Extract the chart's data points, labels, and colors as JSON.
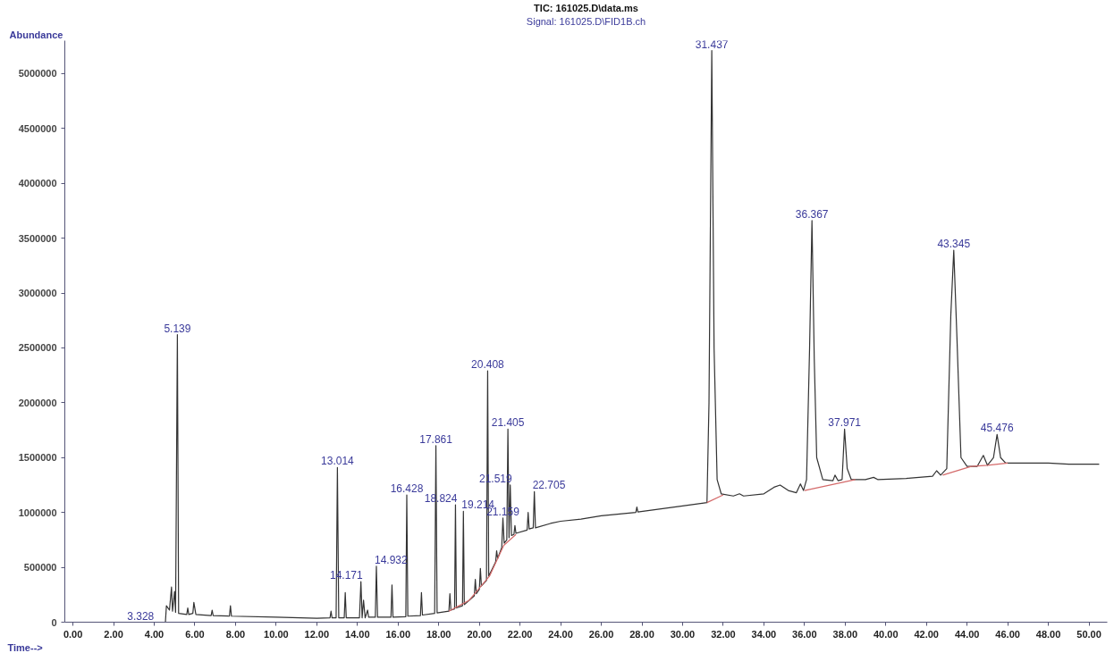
{
  "chart_data": {
    "type": "line",
    "title": "TIC: 161025.D\\data.ms",
    "subtitle": "Signal: 161025.D\\FID1B.ch",
    "xlabel": "Time-->",
    "ylabel": "Abundance",
    "xlim": [
      -0.4,
      50.9
    ],
    "ylim": [
      0,
      5300000
    ],
    "xticks": [
      {
        "value": 0,
        "label": "0.00"
      },
      {
        "value": 2,
        "label": "2.00"
      },
      {
        "value": 4,
        "label": "4.00"
      },
      {
        "value": 6,
        "label": "6.00"
      },
      {
        "value": 8,
        "label": "8.00"
      },
      {
        "value": 10,
        "label": "10.00"
      },
      {
        "value": 12,
        "label": "12.00"
      },
      {
        "value": 14,
        "label": "14.00"
      },
      {
        "value": 16,
        "label": "16.00"
      },
      {
        "value": 18,
        "label": "18.00"
      },
      {
        "value": 20,
        "label": "20.00"
      },
      {
        "value": 22,
        "label": "22.00"
      },
      {
        "value": 24,
        "label": "24.00"
      },
      {
        "value": 26,
        "label": "26.00"
      },
      {
        "value": 28,
        "label": "28.00"
      },
      {
        "value": 30,
        "label": "30.00"
      },
      {
        "value": 32,
        "label": "32.00"
      },
      {
        "value": 34,
        "label": "34.00"
      },
      {
        "value": 36,
        "label": "36.00"
      },
      {
        "value": 38,
        "label": "38.00"
      },
      {
        "value": 40,
        "label": "40.00"
      },
      {
        "value": 42,
        "label": "42.00"
      },
      {
        "value": 44,
        "label": "44.00"
      },
      {
        "value": 46,
        "label": "46.00"
      },
      {
        "value": 48,
        "label": "48.00"
      },
      {
        "value": 50,
        "label": "50.00"
      }
    ],
    "yticks": [
      0,
      500000,
      1000000,
      1500000,
      2000000,
      2500000,
      3000000,
      3500000,
      4000000,
      4500000,
      5000000
    ],
    "grid": false,
    "marker": "none",
    "line_style": "solid",
    "series": [
      {
        "color": "#333333",
        "x": [
          0,
          4.55,
          4.6,
          4.75,
          4.85,
          4.9,
          5.0,
          5.05,
          5.139,
          5.2,
          5.6,
          5.65,
          5.7,
          5.9,
          5.95,
          6.05,
          6.8,
          6.85,
          6.9,
          7.7,
          7.75,
          7.8,
          10,
          12,
          12.65,
          12.7,
          12.75,
          12.95,
          13.014,
          13.08,
          13.35,
          13.4,
          13.45,
          14.1,
          14.171,
          14.23,
          14.3,
          14.38,
          14.5,
          14.55,
          14.88,
          14.932,
          14.99,
          15.65,
          15.7,
          15.75,
          16.38,
          16.428,
          16.48,
          17.1,
          17.15,
          17.2,
          17.8,
          17.861,
          17.92,
          18.5,
          18.55,
          18.6,
          18.78,
          18.824,
          18.87,
          19.17,
          19.214,
          19.26,
          19.75,
          19.8,
          19.85,
          20.0,
          20.05,
          20.1,
          20.35,
          20.408,
          20.46,
          20.8,
          20.85,
          20.9,
          21.1,
          21.159,
          21.22,
          21.35,
          21.405,
          21.46,
          21.519,
          21.58,
          21.7,
          21.75,
          21.8,
          22.35,
          22.4,
          22.45,
          22.65,
          22.705,
          22.76,
          23.5,
          24,
          25,
          26,
          27.7,
          27.75,
          27.8,
          30,
          31.2,
          31.3,
          31.437,
          31.55,
          31.7,
          31.9,
          32.5,
          32.8,
          33,
          34,
          34.5,
          34.8,
          35.2,
          35.6,
          35.8,
          35.95,
          36.1,
          36.25,
          36.367,
          36.48,
          36.6,
          36.9,
          37.4,
          37.5,
          37.65,
          37.85,
          37.971,
          38.1,
          38.3,
          39,
          39.4,
          39.6,
          41,
          42.3,
          42.5,
          42.7,
          43.0,
          43.2,
          43.345,
          43.5,
          43.7,
          44.0,
          44.5,
          44.8,
          45.0,
          45.3,
          45.476,
          45.65,
          45.9,
          47,
          48,
          49,
          50.5
        ],
        "values": [
          0,
          0,
          150000,
          110000,
          320000,
          100000,
          280000,
          90000,
          2620000,
          80000,
          70000,
          130000,
          70000,
          80000,
          180000,
          70000,
          60000,
          110000,
          60000,
          55000,
          150000,
          55000,
          45000,
          35000,
          40000,
          100000,
          40000,
          40000,
          1410000,
          40000,
          40000,
          270000,
          40000,
          40000,
          370000,
          40000,
          200000,
          40000,
          110000,
          45000,
          45000,
          510000,
          45000,
          45000,
          340000,
          45000,
          50000,
          1160000,
          55000,
          60000,
          270000,
          65000,
          80000,
          1610000,
          85000,
          100000,
          260000,
          110000,
          120000,
          1070000,
          130000,
          150000,
          1010000,
          160000,
          240000,
          390000,
          260000,
          300000,
          490000,
          330000,
          380000,
          2290000,
          420000,
          550000,
          650000,
          580000,
          680000,
          950000,
          720000,
          750000,
          1760000,
          770000,
          1250000,
          790000,
          800000,
          880000,
          810000,
          840000,
          1000000,
          850000,
          860000,
          1190000,
          860000,
          900000,
          920000,
          940000,
          970000,
          1000000,
          1050000,
          1005000,
          1060000,
          1090000,
          2000000,
          5210000,
          2500000,
          1300000,
          1170000,
          1150000,
          1170000,
          1150000,
          1170000,
          1230000,
          1250000,
          1200000,
          1180000,
          1260000,
          1200000,
          1300000,
          2500000,
          3660000,
          2400000,
          1500000,
          1300000,
          1290000,
          1340000,
          1290000,
          1300000,
          1760000,
          1400000,
          1300000,
          1300000,
          1320000,
          1300000,
          1310000,
          1330000,
          1380000,
          1340000,
          1400000,
          2800000,
          3390000,
          2600000,
          1500000,
          1420000,
          1420000,
          1520000,
          1430000,
          1500000,
          1710000,
          1500000,
          1450000,
          1450000,
          1450000,
          1440000,
          1440000
        ]
      },
      {
        "color": "#d46a6a",
        "x": [
          18.5,
          19.5,
          20.5,
          21.2,
          21.8,
          25,
          31.2,
          32.0,
          33,
          36.0,
          38.5,
          40,
          42.8,
          44.2,
          45,
          46.0
        ],
        "values": [
          100000,
          200000,
          420000,
          700000,
          800000,
          null,
          1090000,
          1160000,
          null,
          1200000,
          1300000,
          null,
          1340000,
          1420000,
          1430000,
          1450000
        ]
      }
    ],
    "annotations": [
      {
        "text": "3.328",
        "x": 3.328,
        "y": 0
      },
      {
        "text": "5.139",
        "x": 5.139,
        "y": 2620000
      },
      {
        "text": "13.014",
        "x": 13.014,
        "y": 1410000
      },
      {
        "text": "14.171",
        "x": 14.171,
        "y": 370000
      },
      {
        "text": "14.932",
        "x": 14.932,
        "y": 510000
      },
      {
        "text": "16.428",
        "x": 16.428,
        "y": 1160000
      },
      {
        "text": "17.861",
        "x": 17.861,
        "y": 1610000
      },
      {
        "text": "18.824",
        "x": 18.824,
        "y": 1070000
      },
      {
        "text": "19.214",
        "x": 19.214,
        "y": 1010000
      },
      {
        "text": "20.408",
        "x": 20.408,
        "y": 2290000
      },
      {
        "text": "21.159",
        "x": 21.159,
        "y": 950000
      },
      {
        "text": "21.405",
        "x": 21.405,
        "y": 1760000
      },
      {
        "text": "21.519",
        "x": 21.519,
        "y": 1250000
      },
      {
        "text": "22.705",
        "x": 22.705,
        "y": 1190000
      },
      {
        "text": "31.437",
        "x": 31.437,
        "y": 5210000
      },
      {
        "text": "36.367",
        "x": 36.367,
        "y": 3660000
      },
      {
        "text": "37.971",
        "x": 37.971,
        "y": 1760000
      },
      {
        "text": "43.345",
        "x": 43.345,
        "y": 3390000
      },
      {
        "text": "45.476",
        "x": 45.476,
        "y": 1710000
      }
    ]
  }
}
